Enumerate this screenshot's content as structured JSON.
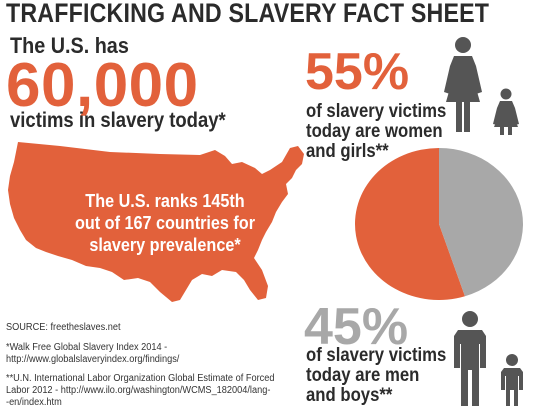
{
  "header": {
    "title": "TRAFFICKING AND SLAVERY FACT SHEET"
  },
  "us": {
    "intro": "The U.S. has",
    "victims_count": "60,000",
    "victims_suffix": "victims in slavery today*",
    "rank_line1": "The U.S. ranks 145th",
    "rank_line2": "out of 167 countries for",
    "rank_line3": "slavery prevalence*"
  },
  "sources": {
    "source": "SOURCE: freetheslaves.net",
    "note1_line1": "*Walk Free Global Slavery Index 2014 -",
    "note1_line2": "http://www.globalslaveryindex.org/findings/",
    "note2_line1": "**U.N. International Labor Organization Global Estimate of Forced",
    "note2_line2": "Labor 2012 - http://www.ilo.org/washington/WCMS_182004/lang-",
    "note2_line3": "-en/index.htm"
  },
  "women": {
    "percent": "55%",
    "line1": "of slavery victims",
    "line2": "today are women",
    "line3": "and girls**"
  },
  "men": {
    "percent": "45%",
    "line1": "of slavery victims",
    "line2": "today are men",
    "line3": "and boys**"
  },
  "icons": {
    "women": "woman-girl-icon",
    "men": "man-boy-icon",
    "map": "us-map-icon"
  },
  "colors": {
    "orange": "#e2613b",
    "gray": "#a8a8a8",
    "dark": "#555555"
  },
  "chart_data": {
    "type": "pie",
    "labels": [
      "Women and girls",
      "Men and boys"
    ],
    "values": [
      55,
      45
    ],
    "colors": [
      "#e2613b",
      "#a8a8a8"
    ]
  }
}
